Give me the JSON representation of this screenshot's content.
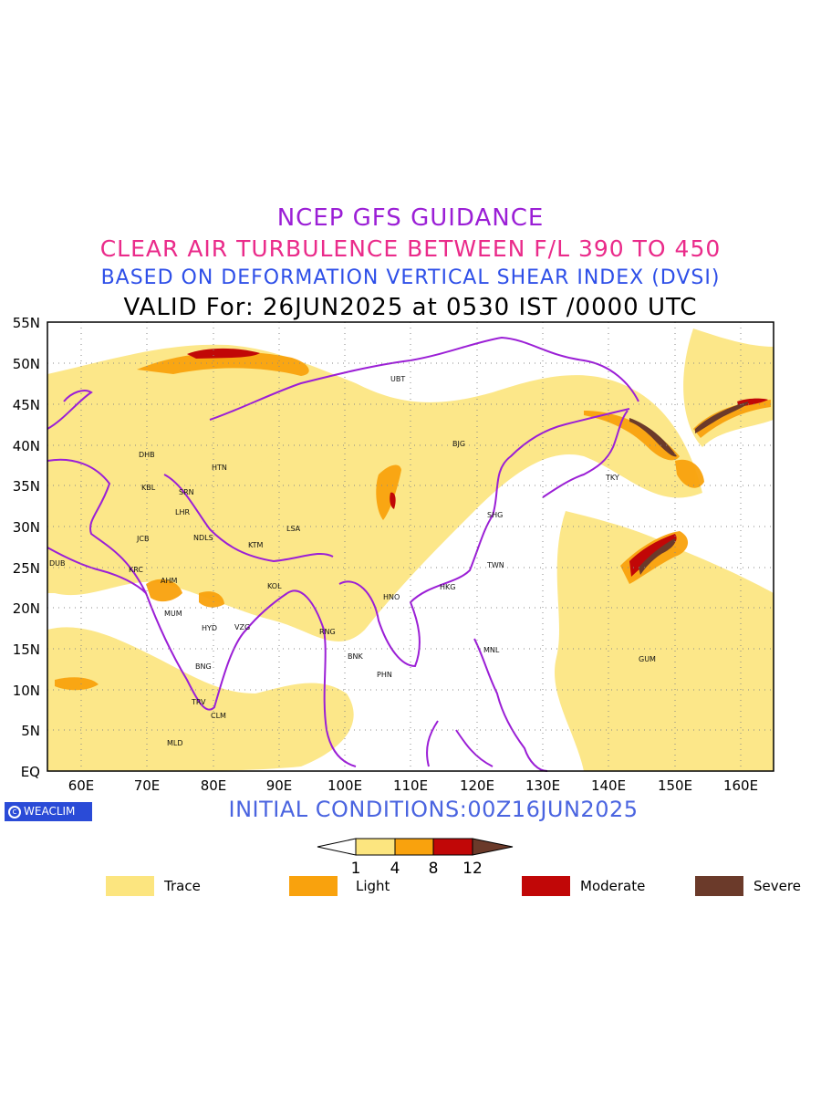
{
  "titles": {
    "line1": "NCEP GFS GUIDANCE",
    "line2": "CLEAR AIR TURBULENCE BETWEEN F/L 390 TO 450",
    "line3": "BASED ON DEFORMATION VERTICAL SHEAR INDEX (DVSI)",
    "line4": "VALID For: 26JUN2025 at 0530 IST /0000 UTC"
  },
  "map": {
    "lat_labels": [
      "55N",
      "50N",
      "45N",
      "40N",
      "35N",
      "30N",
      "25N",
      "20N",
      "15N",
      "10N",
      "5N",
      "EQ"
    ],
    "lon_labels": [
      "60E",
      "70E",
      "80E",
      "90E",
      "100E",
      "110E",
      "120E",
      "130E",
      "140E",
      "150E",
      "160E"
    ],
    "cities": [
      "UBT",
      "DHB",
      "HTN",
      "KBL",
      "SRN",
      "LHR",
      "BJG",
      "TKY",
      "SHG",
      "LSA",
      "JCB",
      "NDLS",
      "KTM",
      "DUB",
      "KRC",
      "TWN",
      "AHM",
      "KOL",
      "HKG",
      "HNO",
      "MUM",
      "HYD",
      "VZG",
      "RNG",
      "MNL",
      "BNK",
      "PHN",
      "GUM",
      "BNG",
      "TRV",
      "CLM",
      "MLD"
    ]
  },
  "footer": {
    "brand": "WEACLIM",
    "initial_conditions": "INITIAL CONDITIONS:00Z16JUN2025"
  },
  "scale": {
    "ticks": [
      "1",
      "4",
      "8",
      "12"
    ]
  },
  "legend": [
    {
      "label": "Trace",
      "color": "#fce57f"
    },
    {
      "label": "Light",
      "color": "#f9a20d"
    },
    {
      "label": "Moderate",
      "color": "#c10707"
    },
    {
      "label": "Severe",
      "color": "#6b3a2a"
    }
  ],
  "colors": {
    "border": "#9b1fd6",
    "trace": "#fce57f",
    "light": "#f9a20d",
    "moderate": "#c10707",
    "severe": "#6b3a2a"
  }
}
